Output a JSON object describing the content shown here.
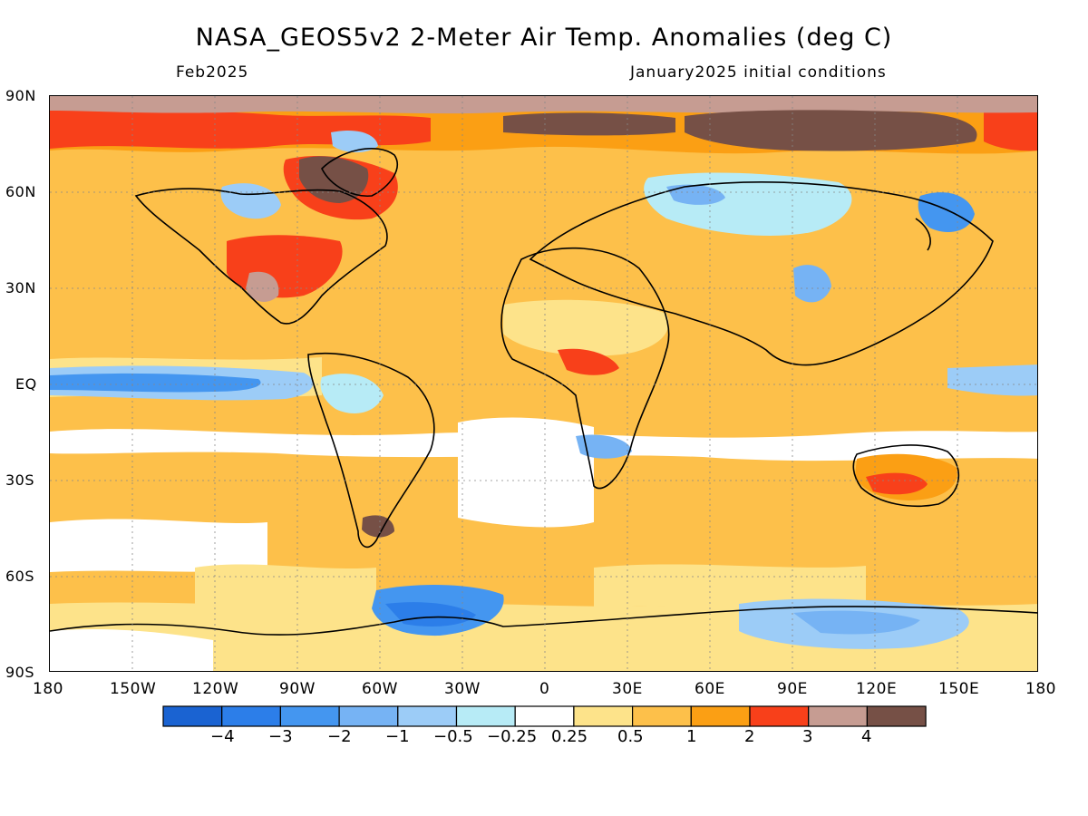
{
  "header": {
    "title": "NASA_GEOS5v2 2-Meter Air Temp. Anomalies (deg C)",
    "valid_month": "Feb2025",
    "init_conditions": "January2025 initial conditions"
  },
  "axes": {
    "lat_labels": [
      "90N",
      "60N",
      "30N",
      "EQ",
      "30S",
      "60S",
      "90S"
    ],
    "lon_labels": [
      "180",
      "150W",
      "120W",
      "90W",
      "60W",
      "30W",
      "0",
      "30E",
      "60E",
      "90E",
      "120E",
      "150E",
      "180"
    ]
  },
  "colorbar": {
    "colors": [
      "#1a63d2",
      "#2c7ee9",
      "#4496f0",
      "#76b3f4",
      "#9cccf7",
      "#b7ebf6",
      "#ffffff",
      "#fde38a",
      "#fdc04a",
      "#fb9f14",
      "#f8401a",
      "#c69c92",
      "#765046"
    ],
    "labels": [
      "−4",
      "−3",
      "−2",
      "−1",
      "−0.5",
      "−0.25",
      "0.25",
      "0.5",
      "1",
      "2",
      "3",
      "4"
    ]
  }
}
